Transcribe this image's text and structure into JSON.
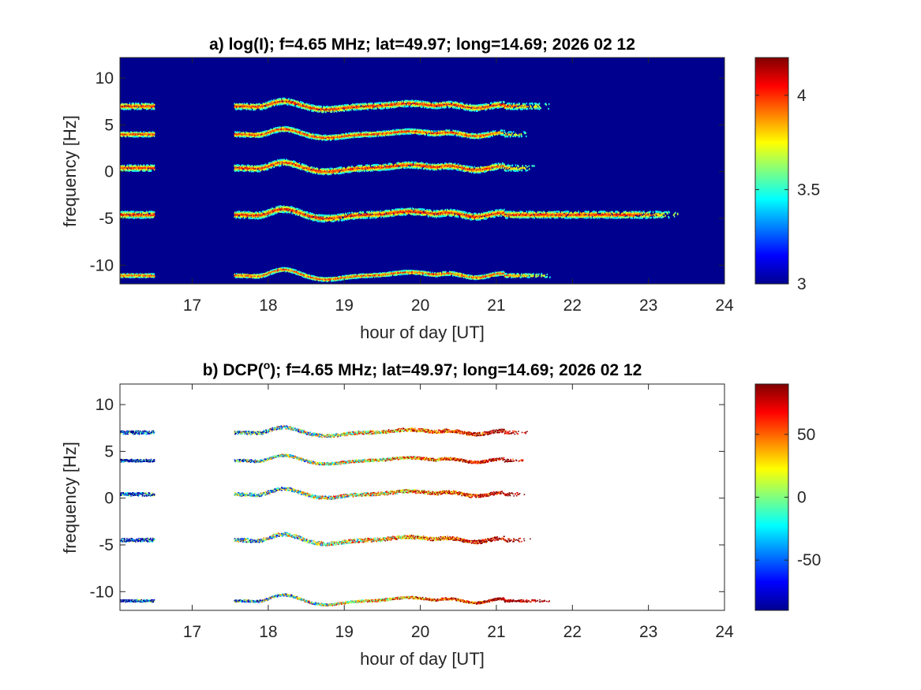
{
  "chart_data": [
    {
      "type": "heatmap",
      "title": "a) log(I); f=4.65 MHz;  lat=49.97; long=14.69; 2026 02 12",
      "xlabel": "hour of day [UT]",
      "ylabel": "frequency [Hz]",
      "xlim": [
        16.05,
        24
      ],
      "ylim": [
        -12,
        12.2
      ],
      "xticks": [
        "17",
        "18",
        "19",
        "20",
        "21",
        "22",
        "23",
        "24"
      ],
      "yticks": [
        "10",
        "5",
        "0",
        "-5",
        "-10"
      ],
      "background": "#00008f",
      "colorbar": {
        "range": [
          3,
          4.2
        ],
        "ticks": [
          "3",
          "3.5",
          "4"
        ]
      },
      "data_gap": [
        16.5,
        17.55
      ],
      "traces": [
        {
          "y": 7.0,
          "end": 21.7,
          "wiggle": 0.5
        },
        {
          "y": 4.0,
          "end": 21.4,
          "wiggle": 0.4
        },
        {
          "y": 0.4,
          "end": 21.5,
          "wiggle": 0.5
        },
        {
          "y": -4.6,
          "end": 23.4,
          "wiggle": 0.55
        },
        {
          "y": -11.1,
          "end": 21.7,
          "wiggle": 0.3
        }
      ]
    },
    {
      "type": "heatmap",
      "title": "b) DCP(",
      "title_superscript": "o",
      "title_suffix": "); f=4.65 MHz;  lat=49.97; long=14.69; 2026 02 12",
      "xlabel": "hour of day [UT]",
      "ylabel": "frequency [Hz]",
      "xlim": [
        16.05,
        24
      ],
      "ylim": [
        -12,
        12.2
      ],
      "xticks": [
        "17",
        "18",
        "19",
        "20",
        "21",
        "22",
        "23",
        "24"
      ],
      "yticks": [
        "10",
        "5",
        "0",
        "-5",
        "-10"
      ],
      "background": "#ffffff",
      "colorbar": {
        "range": [
          -90,
          90
        ],
        "ticks": [
          "-50",
          "0",
          "50"
        ]
      },
      "data_gap": [
        16.5,
        17.55
      ],
      "traces": [
        {
          "y": 7.0,
          "end": 21.45,
          "wiggle": 0.45
        },
        {
          "y": 4.0,
          "end": 21.4,
          "wiggle": 0.35
        },
        {
          "y": 0.4,
          "end": 21.4,
          "wiggle": 0.45
        },
        {
          "y": -4.5,
          "end": 21.45,
          "wiggle": 0.5
        },
        {
          "y": -11.0,
          "end": 21.7,
          "wiggle": 0.3
        }
      ]
    }
  ]
}
